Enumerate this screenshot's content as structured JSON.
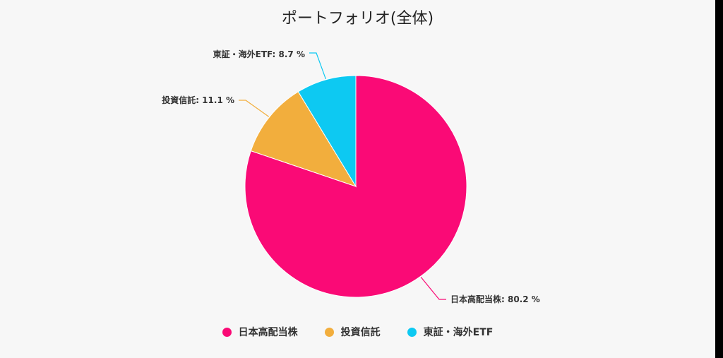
{
  "chart_data": {
    "type": "pie",
    "title": "ポートフォリオ(全体)",
    "slices": [
      {
        "label": "日本高配当株",
        "value": 80.2,
        "color": "#fa0a76"
      },
      {
        "label": "投資信託",
        "value": 11.1,
        "color": "#f2ae3d"
      },
      {
        "label": "東証・海外ETF",
        "value": 8.7,
        "color": "#0dc9f2"
      }
    ],
    "value_suffix": " %",
    "legend_position": "bottom-center"
  }
}
